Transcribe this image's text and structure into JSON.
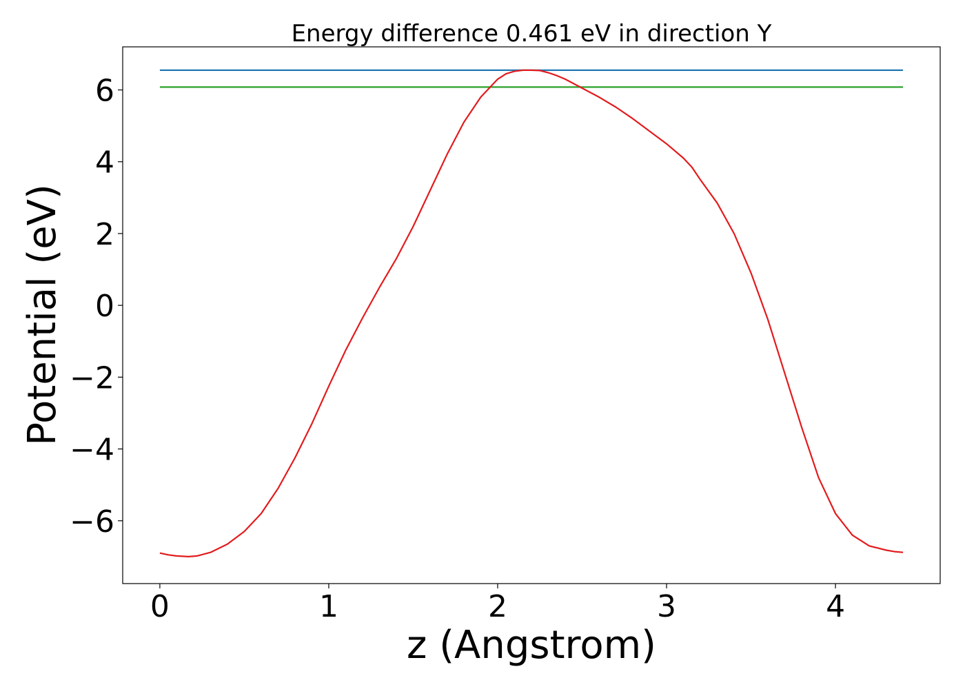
{
  "chart_data": {
    "type": "line",
    "title": "Energy difference 0.461 eV in direction Y",
    "xlabel": "z (Angstrom)",
    "ylabel": "Potential (eV)",
    "xlim": [
      -0.22,
      4.62
    ],
    "ylim": [
      -7.75,
      7.2
    ],
    "xticks": [
      0,
      1,
      2,
      3,
      4
    ],
    "xtick_labels": [
      "0",
      "1",
      "2",
      "3",
      "4"
    ],
    "yticks": [
      -6,
      -4,
      -2,
      0,
      2,
      4,
      6
    ],
    "ytick_labels": [
      "−6",
      "−4",
      "−2",
      "0",
      "2",
      "4",
      "6"
    ],
    "grid": false,
    "legend": "none",
    "series": [
      {
        "color": "#1f77b4",
        "x": [
          0,
          4.4
        ],
        "y": [
          6.55,
          6.55
        ]
      },
      {
        "color": "#2ca02c",
        "x": [
          0,
          4.4
        ],
        "y": [
          6.08,
          6.08
        ]
      },
      {
        "color": "#e31a1c",
        "x": [
          0,
          0.05,
          0.1,
          0.17,
          0.22,
          0.3,
          0.4,
          0.5,
          0.6,
          0.7,
          0.8,
          0.9,
          1.0,
          1.1,
          1.2,
          1.3,
          1.4,
          1.5,
          1.6,
          1.7,
          1.8,
          1.9,
          2.0,
          2.05,
          2.1,
          2.15,
          2.2,
          2.25,
          2.3,
          2.35,
          2.4,
          2.5,
          2.6,
          2.7,
          2.8,
          2.9,
          3.0,
          3.1,
          3.15,
          3.2,
          3.3,
          3.4,
          3.5,
          3.6,
          3.7,
          3.8,
          3.9,
          4.0,
          4.1,
          4.2,
          4.3,
          4.35,
          4.4
        ],
        "y": [
          -6.9,
          -6.95,
          -6.98,
          -7.0,
          -6.98,
          -6.88,
          -6.65,
          -6.3,
          -5.8,
          -5.1,
          -4.25,
          -3.3,
          -2.25,
          -1.25,
          -0.35,
          0.5,
          1.3,
          2.2,
          3.2,
          4.2,
          5.1,
          5.8,
          6.3,
          6.45,
          6.52,
          6.55,
          6.55,
          6.54,
          6.48,
          6.4,
          6.3,
          6.05,
          5.8,
          5.52,
          5.2,
          4.85,
          4.5,
          4.1,
          3.85,
          3.5,
          2.85,
          2.0,
          0.9,
          -0.4,
          -1.9,
          -3.4,
          -4.8,
          -5.8,
          -6.4,
          -6.7,
          -6.82,
          -6.86,
          -6.88
        ]
      }
    ]
  }
}
